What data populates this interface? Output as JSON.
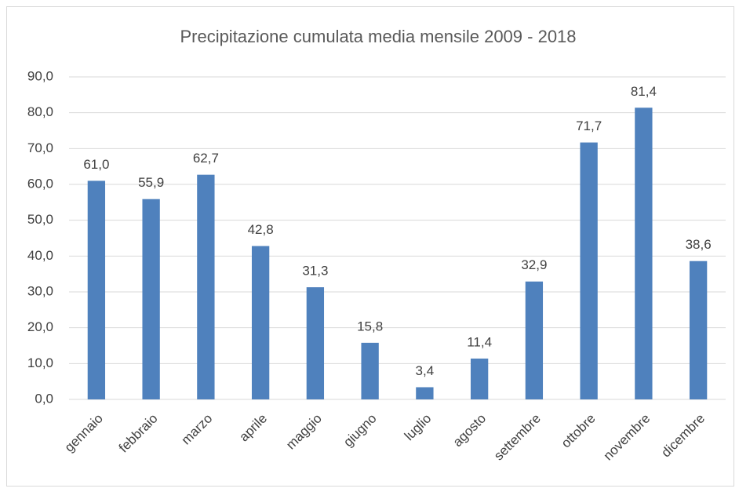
{
  "chart_data": {
    "type": "bar",
    "title": "Precipitazione cumulata media mensile 2009 - 2018",
    "categories": [
      "gennaio",
      "febbraio",
      "marzo",
      "aprile",
      "maggio",
      "giugno",
      "luglio",
      "agosto",
      "settembre",
      "ottobre",
      "novembre",
      "dicembre"
    ],
    "values": [
      61.0,
      55.9,
      62.7,
      42.8,
      31.3,
      15.8,
      3.4,
      11.4,
      32.9,
      71.7,
      81.4,
      38.6
    ],
    "value_labels": [
      "61,0",
      "55,9",
      "62,7",
      "42,8",
      "31,3",
      "15,8",
      "3,4",
      "11,4",
      "32,9",
      "71,7",
      "81,4",
      "38,6"
    ],
    "color": "#4f81bd",
    "ylim": [
      0,
      90
    ],
    "yticks": [
      {
        "value": 0,
        "label": "0,0"
      },
      {
        "value": 10,
        "label": "10,0"
      },
      {
        "value": 20,
        "label": "20,0"
      },
      {
        "value": 30,
        "label": "30,0"
      },
      {
        "value": 40,
        "label": "40,0"
      },
      {
        "value": 50,
        "label": "50,0"
      },
      {
        "value": 60,
        "label": "60,0"
      },
      {
        "value": 70,
        "label": "70,0"
      },
      {
        "value": 80,
        "label": "80,0"
      },
      {
        "value": 90,
        "label": "90,0"
      }
    ],
    "grid": true
  }
}
